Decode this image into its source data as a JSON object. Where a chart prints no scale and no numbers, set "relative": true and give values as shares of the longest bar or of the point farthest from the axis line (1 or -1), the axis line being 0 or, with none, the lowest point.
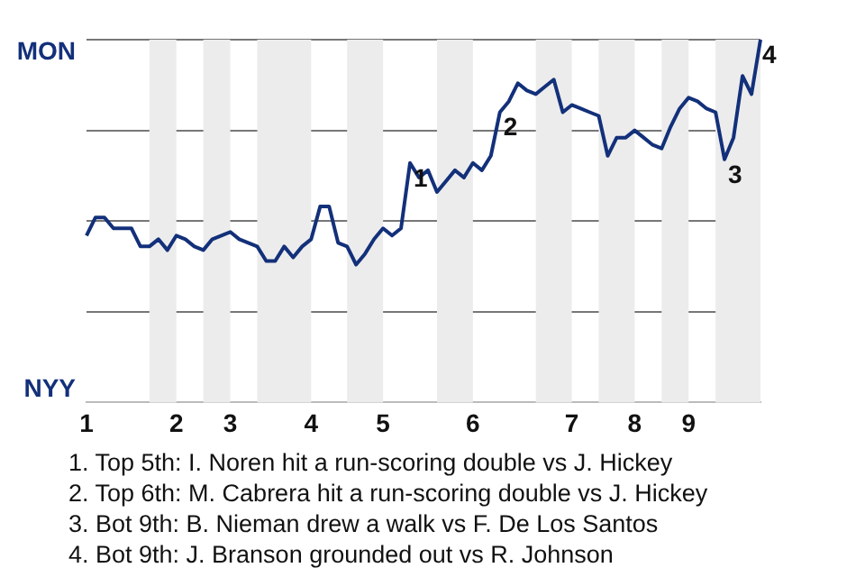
{
  "chart_data": {
    "type": "line",
    "relative": true,
    "categories": [
      "1",
      null,
      null,
      null,
      null,
      null,
      null,
      null,
      null,
      null,
      "2",
      null,
      null,
      null,
      null,
      null,
      "3",
      null,
      null,
      null,
      null,
      null,
      null,
      null,
      null,
      "4",
      null,
      null,
      null,
      null,
      null,
      null,
      null,
      "5",
      null,
      null,
      null,
      null,
      null,
      null,
      null,
      null,
      null,
      "6",
      null,
      null,
      null,
      null,
      null,
      null,
      null,
      null,
      null,
      null,
      "7",
      null,
      null,
      null,
      null,
      null,
      null,
      "8",
      null,
      null,
      null,
      null,
      null,
      "9",
      null,
      null,
      null,
      null,
      null,
      null,
      null,
      null
    ],
    "values": [
      0.46,
      0.51,
      0.51,
      0.48,
      0.48,
      0.48,
      0.43,
      0.43,
      0.45,
      0.42,
      0.46,
      0.45,
      0.43,
      0.42,
      0.45,
      0.46,
      0.47,
      0.45,
      0.44,
      0.43,
      0.39,
      0.39,
      0.43,
      0.4,
      0.43,
      0.45,
      0.54,
      0.54,
      0.44,
      0.43,
      0.38,
      0.41,
      0.45,
      0.48,
      0.46,
      0.48,
      0.66,
      0.62,
      0.64,
      0.58,
      0.61,
      0.64,
      0.62,
      0.66,
      0.64,
      0.68,
      0.8,
      0.83,
      0.88,
      0.86,
      0.85,
      0.87,
      0.89,
      0.8,
      0.82,
      0.81,
      0.8,
      0.79,
      0.68,
      0.73,
      0.73,
      0.75,
      0.73,
      0.71,
      0.7,
      0.76,
      0.81,
      0.84,
      0.83,
      0.81,
      0.8,
      0.67,
      0.73,
      0.9,
      0.85,
      1.0
    ],
    "color": "#13307a",
    "grid": "y",
    "annotations": [
      "MON",
      "NYY",
      {
        "text": "1",
        "y": 0.66
      },
      {
        "text": "2",
        "y": 0.8
      },
      {
        "text": "3",
        "y": 0.67
      },
      {
        "text": "4",
        "y": 1.0
      },
      "1. Top 5th: I. Noren hit a run-scoring double vs J. Hickey",
      "2. Top 6th: M. Cabrera hit a run-scoring double vs J. Hickey",
      "3. Bot 9th: B. Nieman drew a walk vs F. De Los Santos",
      "4. Bot 9th: J. Branson grounded out vs R. Johnson"
    ]
  }
}
